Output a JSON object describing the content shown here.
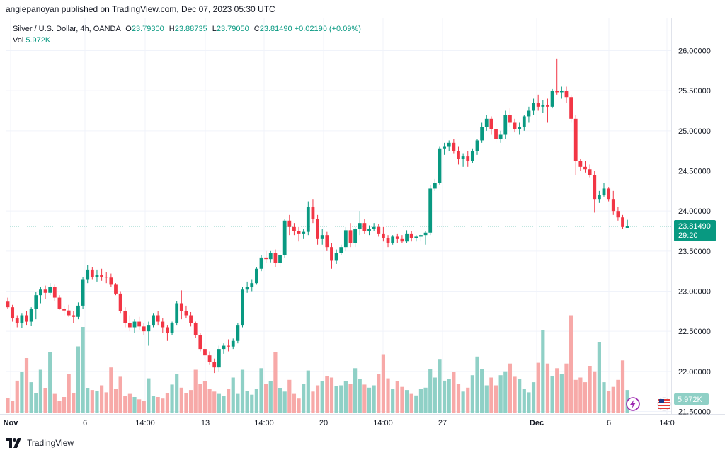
{
  "header": {
    "published": "angiepanoyan published on TradingView.com, Dec 07, 2023 05:30 UTC"
  },
  "legend": {
    "symbol": "Silver / U.S. Dollar, 4h, OANDA",
    "o_label": "O",
    "o_value": "23.79300",
    "h_label": "H",
    "h_value": "23.88735",
    "l_label": "L",
    "l_value": "23.79050",
    "c_label": "C",
    "c_value": "23.81490",
    "change": "+0.02190 (+0.09%)",
    "vol_label": "Vol",
    "vol_value": "5.972K"
  },
  "price_tag": {
    "price": "23.81490",
    "countdown": "29:20"
  },
  "volume_tag": "5.972K",
  "footer": {
    "brand": "TradingView"
  },
  "colors": {
    "up": "#089981",
    "down": "#f23645",
    "vol_up": "#8fd0c6",
    "vol_down": "#f7a9a8",
    "grid": "#f0f3fa"
  },
  "chart_data": {
    "type": "candlestick",
    "symbol": "Silver / U.S. Dollar",
    "timeframe": "4h",
    "ylim": [
      21.5,
      26.3
    ],
    "y_ticks": [
      "26.00000",
      "25.50000",
      "25.00000",
      "24.50000",
      "24.00000",
      "23.50000",
      "23.00000",
      "22.50000",
      "22.00000",
      "21.50000"
    ],
    "x_ticks": [
      "Nov",
      "6",
      "14:00",
      "13",
      "14:00",
      "20",
      "14:00",
      "27",
      "Dec",
      "6",
      "14:0"
    ],
    "ohlc": [
      [
        22.87,
        22.92,
        22.78,
        22.8
      ],
      [
        22.8,
        22.83,
        22.62,
        22.66
      ],
      [
        22.66,
        22.7,
        22.55,
        22.6
      ],
      [
        22.6,
        22.72,
        22.54,
        22.7
      ],
      [
        22.7,
        22.75,
        22.58,
        22.62
      ],
      [
        22.62,
        22.8,
        22.57,
        22.78
      ],
      [
        22.78,
        22.99,
        22.65,
        22.95
      ],
      [
        22.95,
        23.05,
        22.85,
        23.02
      ],
      [
        23.02,
        23.07,
        22.9,
        22.98
      ],
      [
        22.98,
        23.1,
        22.95,
        23.05
      ],
      [
        23.05,
        23.08,
        22.88,
        22.92
      ],
      [
        22.92,
        22.95,
        22.77,
        22.78
      ],
      [
        22.78,
        22.82,
        22.7,
        22.76
      ],
      [
        22.76,
        22.83,
        22.68,
        22.7
      ],
      [
        22.7,
        22.75,
        22.6,
        22.68
      ],
      [
        22.68,
        22.86,
        22.65,
        22.82
      ],
      [
        22.82,
        23.18,
        22.78,
        23.15
      ],
      [
        23.15,
        23.33,
        23.1,
        23.27
      ],
      [
        23.27,
        23.3,
        23.15,
        23.18
      ],
      [
        23.18,
        23.27,
        23.12,
        23.2
      ],
      [
        23.2,
        23.28,
        23.13,
        23.18
      ],
      [
        23.18,
        23.24,
        23.1,
        23.17
      ],
      [
        23.17,
        23.22,
        23.05,
        23.08
      ],
      [
        23.08,
        23.1,
        22.95,
        22.97
      ],
      [
        22.97,
        23.0,
        22.72,
        22.75
      ],
      [
        22.75,
        22.8,
        22.55,
        22.6
      ],
      [
        22.6,
        22.7,
        22.5,
        22.55
      ],
      [
        22.55,
        22.65,
        22.48,
        22.62
      ],
      [
        22.62,
        22.68,
        22.52,
        22.56
      ],
      [
        22.56,
        22.6,
        22.45,
        22.5
      ],
      [
        22.5,
        22.62,
        22.32,
        22.58
      ],
      [
        22.58,
        22.72,
        22.55,
        22.7
      ],
      [
        22.7,
        22.75,
        22.58,
        22.62
      ],
      [
        22.62,
        22.66,
        22.48,
        22.55
      ],
      [
        22.55,
        22.58,
        22.38,
        22.48
      ],
      [
        22.48,
        22.62,
        22.45,
        22.6
      ],
      [
        22.6,
        22.88,
        22.58,
        22.85
      ],
      [
        22.85,
        23.01,
        22.65,
        22.75
      ],
      [
        22.75,
        22.82,
        22.66,
        22.7
      ],
      [
        22.7,
        22.74,
        22.56,
        22.6
      ],
      [
        22.6,
        22.62,
        22.42,
        22.45
      ],
      [
        22.45,
        22.48,
        22.25,
        22.28
      ],
      [
        22.28,
        22.35,
        22.15,
        22.2
      ],
      [
        22.2,
        22.25,
        22.08,
        22.12
      ],
      [
        22.12,
        22.16,
        21.98,
        22.05
      ],
      [
        22.05,
        22.32,
        22.0,
        22.28
      ],
      [
        22.28,
        22.35,
        22.22,
        22.32
      ],
      [
        22.32,
        22.4,
        22.25,
        22.31
      ],
      [
        22.31,
        22.41,
        22.28,
        22.38
      ],
      [
        22.38,
        22.6,
        22.35,
        22.58
      ],
      [
        22.58,
        23.05,
        22.55,
        23.02
      ],
      [
        23.02,
        23.12,
        22.98,
        23.05
      ],
      [
        23.05,
        23.15,
        23.0,
        23.1
      ],
      [
        23.1,
        23.3,
        23.08,
        23.28
      ],
      [
        23.28,
        23.45,
        23.25,
        23.42
      ],
      [
        23.42,
        23.5,
        23.35,
        23.4
      ],
      [
        23.4,
        23.5,
        23.36,
        23.48
      ],
      [
        23.48,
        23.52,
        23.3,
        23.35
      ],
      [
        23.35,
        23.5,
        23.3,
        23.45
      ],
      [
        23.45,
        23.9,
        23.42,
        23.88
      ],
      [
        23.88,
        23.95,
        23.7,
        23.8
      ],
      [
        23.8,
        23.85,
        23.7,
        23.75
      ],
      [
        23.75,
        23.8,
        23.62,
        23.72
      ],
      [
        23.72,
        23.78,
        23.65,
        23.74
      ],
      [
        23.74,
        24.12,
        23.7,
        24.05
      ],
      [
        24.05,
        24.15,
        23.85,
        23.9
      ],
      [
        23.9,
        23.95,
        23.58,
        23.65
      ],
      [
        23.65,
        23.78,
        23.58,
        23.7
      ],
      [
        23.7,
        23.74,
        23.5,
        23.55
      ],
      [
        23.55,
        23.6,
        23.28,
        23.38
      ],
      [
        23.38,
        23.52,
        23.34,
        23.48
      ],
      [
        23.48,
        23.58,
        23.45,
        23.55
      ],
      [
        23.55,
        23.8,
        23.5,
        23.76
      ],
      [
        23.76,
        23.85,
        23.55,
        23.6
      ],
      [
        23.6,
        23.8,
        23.55,
        23.78
      ],
      [
        23.78,
        24.0,
        23.7,
        23.85
      ],
      [
        23.85,
        23.9,
        23.72,
        23.75
      ],
      [
        23.75,
        23.82,
        23.7,
        23.78
      ],
      [
        23.78,
        23.85,
        23.75,
        23.8
      ],
      [
        23.8,
        23.84,
        23.68,
        23.72
      ],
      [
        23.72,
        23.8,
        23.62,
        23.66
      ],
      [
        23.66,
        23.7,
        23.55,
        23.6
      ],
      [
        23.6,
        23.7,
        23.58,
        23.68
      ],
      [
        23.68,
        23.72,
        23.6,
        23.65
      ],
      [
        23.65,
        23.7,
        23.6,
        23.62
      ],
      [
        23.62,
        23.76,
        23.6,
        23.72
      ],
      [
        23.72,
        23.75,
        23.62,
        23.66
      ],
      [
        23.66,
        23.7,
        23.62,
        23.68
      ],
      [
        23.68,
        23.72,
        23.62,
        23.7
      ],
      [
        23.7,
        23.75,
        23.58,
        23.73
      ],
      [
        23.73,
        24.32,
        23.7,
        24.28
      ],
      [
        24.28,
        24.4,
        24.25,
        24.35
      ],
      [
        24.35,
        24.8,
        24.33,
        24.78
      ],
      [
        24.78,
        24.85,
        24.7,
        24.8
      ],
      [
        24.8,
        24.88,
        24.75,
        24.85
      ],
      [
        24.85,
        24.9,
        24.72,
        24.75
      ],
      [
        24.75,
        24.8,
        24.58,
        24.65
      ],
      [
        24.65,
        24.72,
        24.55,
        24.68
      ],
      [
        24.68,
        24.75,
        24.55,
        24.62
      ],
      [
        24.62,
        24.78,
        24.6,
        24.75
      ],
      [
        24.75,
        24.9,
        24.7,
        24.88
      ],
      [
        24.88,
        25.1,
        24.85,
        25.05
      ],
      [
        25.05,
        25.2,
        25.0,
        25.15
      ],
      [
        25.15,
        25.18,
        24.95,
        25.02
      ],
      [
        25.02,
        25.1,
        24.85,
        24.9
      ],
      [
        24.9,
        25.0,
        24.85,
        24.95
      ],
      [
        24.95,
        25.25,
        24.9,
        25.2
      ],
      [
        25.2,
        25.28,
        25.05,
        25.1
      ],
      [
        25.1,
        25.15,
        24.98,
        25.02
      ],
      [
        25.02,
        25.1,
        24.95,
        25.05
      ],
      [
        25.05,
        25.2,
        25.0,
        25.18
      ],
      [
        25.18,
        25.3,
        25.1,
        25.25
      ],
      [
        25.25,
        25.4,
        25.2,
        25.35
      ],
      [
        25.35,
        25.45,
        25.25,
        25.3
      ],
      [
        25.3,
        25.38,
        25.22,
        25.32
      ],
      [
        25.32,
        25.4,
        25.1,
        25.3
      ],
      [
        25.3,
        25.52,
        25.28,
        25.5
      ],
      [
        25.5,
        25.9,
        25.45,
        25.48
      ],
      [
        25.48,
        25.55,
        25.4,
        25.5
      ],
      [
        25.5,
        25.55,
        25.35,
        25.42
      ],
      [
        25.42,
        25.45,
        25.1,
        25.15
      ],
      [
        25.15,
        25.2,
        24.45,
        24.62
      ],
      [
        24.62,
        24.65,
        24.5,
        24.55
      ],
      [
        24.55,
        24.62,
        24.48,
        24.52
      ],
      [
        24.52,
        24.58,
        24.42,
        24.45
      ],
      [
        24.45,
        24.5,
        23.98,
        24.15
      ],
      [
        24.15,
        24.25,
        24.1,
        24.2
      ],
      [
        24.2,
        24.35,
        24.18,
        24.28
      ],
      [
        24.28,
        24.3,
        24.12,
        24.15
      ],
      [
        24.15,
        24.25,
        23.95,
        24.0
      ],
      [
        24.0,
        24.05,
        23.88,
        23.92
      ],
      [
        23.92,
        23.95,
        23.78,
        23.8
      ],
      [
        23.79,
        23.89,
        23.79,
        23.81
      ]
    ],
    "volume": [
      0.38,
      0.3,
      0.82,
      1.05,
      1.4,
      0.78,
      0.5,
      1.1,
      0.62,
      1.55,
      0.48,
      0.3,
      0.4,
      1.0,
      0.5,
      1.7,
      2.2,
      0.62,
      0.58,
      0.55,
      0.7,
      0.52,
      1.16,
      0.6,
      0.92,
      0.42,
      0.48,
      0.4,
      0.34,
      0.3,
      0.88,
      0.42,
      0.4,
      0.36,
      0.5,
      0.72,
      1.0,
      0.64,
      0.5,
      0.58,
      1.1,
      0.74,
      0.8,
      0.6,
      0.54,
      0.48,
      0.42,
      0.6,
      0.9,
      0.48,
      1.1,
      0.56,
      0.46,
      0.6,
      1.14,
      0.74,
      0.8,
      1.55,
      0.62,
      0.54,
      0.84,
      0.48,
      0.36,
      0.74,
      1.08,
      0.54,
      0.7,
      0.8,
      0.94,
      0.9,
      0.68,
      0.7,
      0.8,
      0.74,
      1.14,
      0.86,
      0.72,
      0.64,
      0.7,
      1.0,
      1.5,
      0.88,
      0.6,
      0.8,
      0.66,
      0.58,
      0.48,
      0.44,
      0.6,
      0.64,
      1.12,
      0.9,
      1.36,
      0.82,
      0.86,
      1.04,
      0.74,
      0.54,
      0.64,
      0.96,
      1.44,
      1.12,
      0.7,
      0.9,
      0.7,
      0.96,
      1.06,
      1.26,
      0.92,
      0.86,
      0.6,
      0.52,
      0.78,
      1.28,
      2.12,
      1.26,
      0.94,
      1.14,
      1.0,
      1.26,
      2.5,
      0.84,
      0.9,
      0.78,
      1.2,
      1.06,
      1.8,
      0.78,
      0.56,
      0.66,
      0.84,
      1.34,
      0.58
    ]
  }
}
